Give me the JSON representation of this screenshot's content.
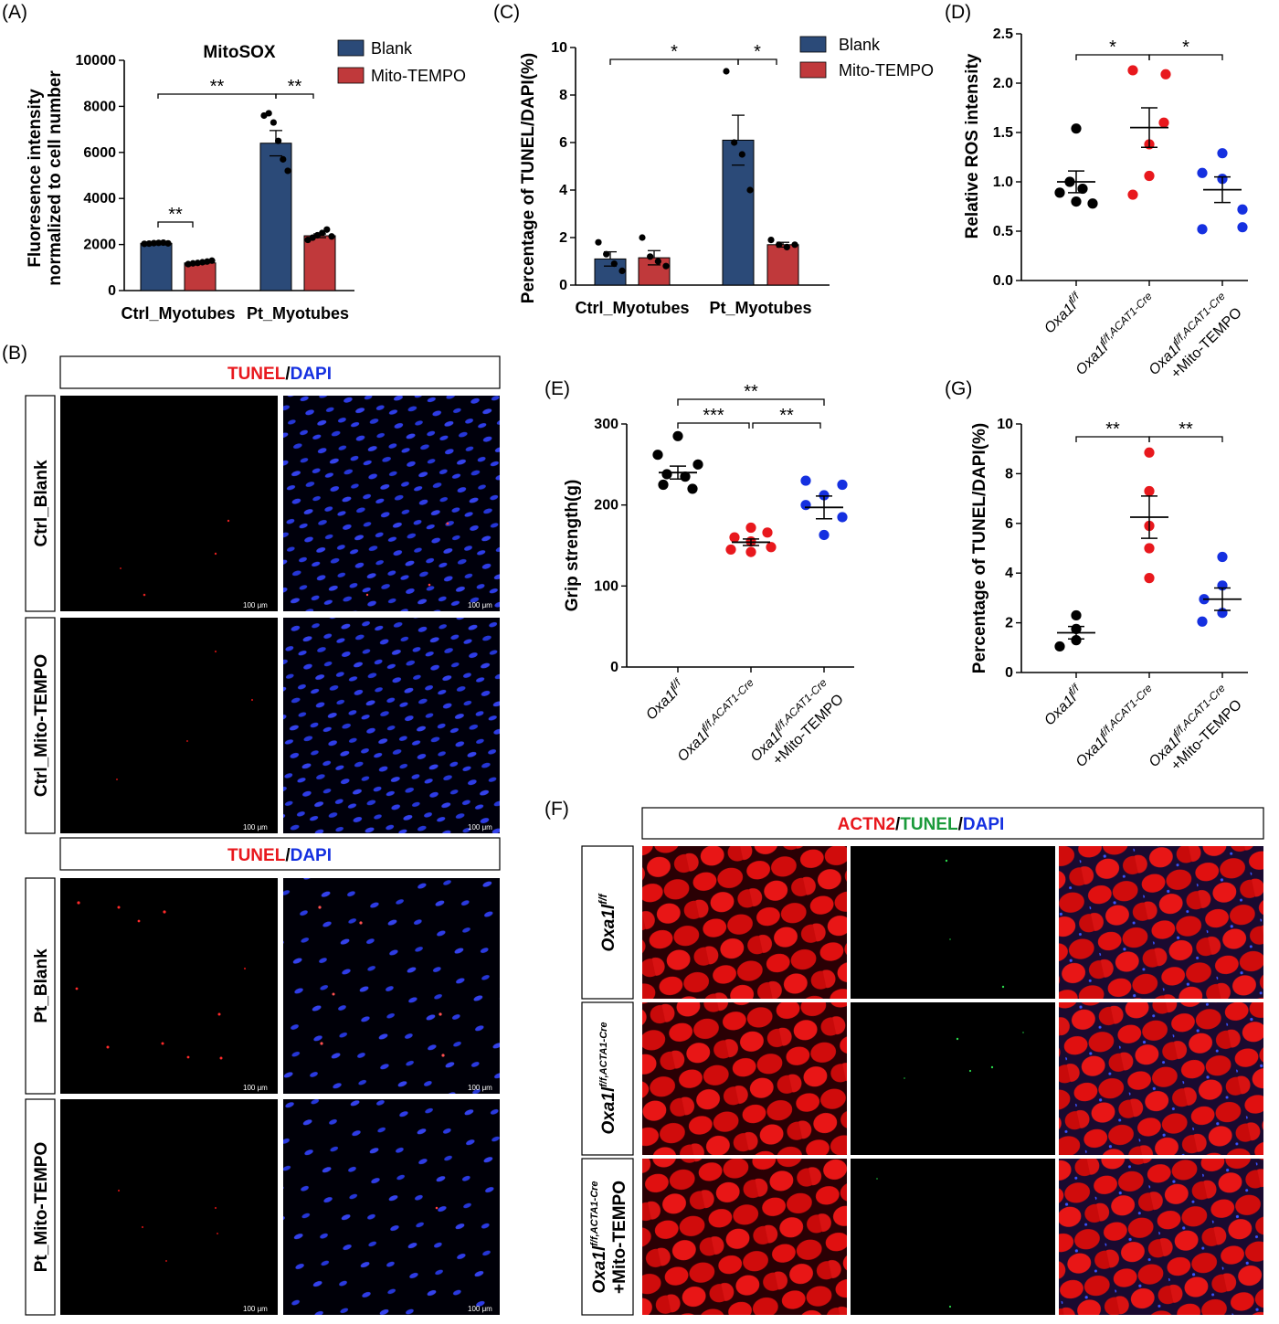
{
  "panels": {
    "A": {
      "letter": "(A)",
      "title": "MitoSOX",
      "ylabel_1": "Fluoresence intensity",
      "ylabel_2": "normalized to cell number"
    },
    "B": {
      "letter": "(B)",
      "header_red": "TUNEL",
      "header_sep": "/",
      "header_blue": "DAPI",
      "rows": [
        "Ctrl_Blank",
        "Ctrl_Mito-TEMPO",
        "Pt_Blank",
        "Pt_Mito-TEMPO"
      ],
      "scale_bar": "100 μm"
    },
    "C": {
      "letter": "(C)",
      "ylabel": "Percentage of TUNEL/DAPI(%)"
    },
    "D": {
      "letter": "(D)",
      "ylabel": "Relative ROS intensity"
    },
    "E": {
      "letter": "(E)",
      "ylabel": "Grip strength(g)"
    },
    "F": {
      "letter": "(F)",
      "header_red": "ACTN2",
      "header_sep1": "/",
      "header_green": "TUNEL",
      "header_sep2": "/",
      "header_blue": "DAPI",
      "row1_base": "Oxa1l",
      "row1_sup": "f/f",
      "row2_base": "Oxa1l",
      "row2_sup": "f/f,ACTA1-Cre",
      "row3_base": "Oxa1l",
      "row3_sup": "f/f,ACTA1-Cre",
      "row3_line2": "+Mito-TEMPO"
    },
    "G": {
      "letter": "(G)",
      "ylabel": "Percentage of TUNEL/DAPI(%)"
    }
  },
  "legend": {
    "blank": "Blank",
    "mito": "Mito-TEMPO"
  },
  "groups_bar": [
    "Ctrl_Myotubes",
    "Pt_Myotubes"
  ],
  "groups_mouse": {
    "g1": {
      "base": "Oxa1l",
      "sup": "f/f"
    },
    "g2": {
      "base": "Oxa1l",
      "sup": "f/f,ACAT1-Cre"
    },
    "g3": {
      "base": "Oxa1l",
      "sup": "f/f,ACAT1-Cre",
      "line2": "+Mito-TEMPO"
    }
  },
  "sig": {
    "one": "*",
    "two": "**",
    "three": "***"
  },
  "colors": {
    "blank": "#2b4a78",
    "mito": "#c0393b",
    "g1": "#000000",
    "g2": "#e8181d",
    "g3": "#1530e0",
    "tunel_red": "#e8181d",
    "dapi_blue": "#1530e0",
    "tunel_green": "#1a9a3a"
  },
  "chart_data": [
    {
      "id": "A",
      "type": "bar",
      "title": "MitoSOX",
      "ylabel": "Fluoresence intensity normalized to cell number",
      "categories": [
        "Ctrl_Myotubes",
        "Pt_Myotubes"
      ],
      "ylim": [
        0,
        10000
      ],
      "yticks": [
        0,
        2000,
        4000,
        6000,
        8000,
        10000
      ],
      "series": [
        {
          "name": "Blank",
          "values": [
            2050,
            6400
          ],
          "errors": [
            30,
            550
          ],
          "points": [
            [
              2030,
              2040,
              2060,
              2070,
              2080,
              2050
            ],
            [
              7600,
              7700,
              7300,
              6500,
              5700,
              5200
            ]
          ]
        },
        {
          "name": "Mito-TEMPO",
          "values": [
            1200,
            2380
          ],
          "errors": [
            40,
            80
          ],
          "points": [
            [
              1150,
              1180,
              1200,
              1230,
              1260,
              1300
            ],
            [
              2200,
              2300,
              2400,
              2500,
              2650,
              2350
            ]
          ]
        }
      ],
      "significance": [
        {
          "pair": "Ctrl Blank vs Ctrl Mito-TEMPO",
          "mark": "**"
        },
        {
          "pair": "Ctrl Blank vs Pt Blank",
          "mark": "**"
        },
        {
          "pair": "Pt Blank vs Pt Mito-TEMPO",
          "mark": "**"
        }
      ]
    },
    {
      "id": "C",
      "type": "bar",
      "ylabel": "Percentage of TUNEL/DAPI(%)",
      "categories": [
        "Ctrl_Myotubes",
        "Pt_Myotubes"
      ],
      "ylim": [
        0,
        10
      ],
      "yticks": [
        0,
        2,
        4,
        6,
        8,
        10
      ],
      "series": [
        {
          "name": "Blank",
          "values": [
            1.1,
            6.1
          ],
          "errors": [
            0.3,
            1.05
          ],
          "points": [
            [
              1.8,
              1.3,
              0.9,
              0.6
            ],
            [
              9.0,
              6.0,
              5.5,
              4.0
            ]
          ]
        },
        {
          "name": "Mito-TEMPO",
          "values": [
            1.15,
            1.7
          ],
          "errors": [
            0.3,
            0.1
          ],
          "points": [
            [
              2.0,
              1.2,
              1.0,
              0.8
            ],
            [
              1.9,
              1.7,
              1.6,
              1.7
            ]
          ]
        }
      ],
      "significance": [
        {
          "pair": "Ctrl Blank vs Pt Blank",
          "mark": "*"
        },
        {
          "pair": "Pt Blank vs Pt Mito-TEMPO",
          "mark": "*"
        }
      ]
    },
    {
      "id": "D",
      "type": "scatter",
      "ylabel": "Relative ROS intensity",
      "ylim": [
        0,
        2.5
      ],
      "yticks": [
        0.0,
        0.5,
        1.0,
        1.5,
        2.0,
        2.5
      ],
      "categories": [
        "Oxa1l f/f",
        "Oxa1l f/f,ACAT1-Cre",
        "Oxa1l f/f,ACAT1-Cre +Mito-TEMPO"
      ],
      "groups": [
        {
          "mean": 1.0,
          "sem": 0.11,
          "points": [
            1.54,
            1.0,
            0.93,
            0.89,
            0.8,
            0.78
          ]
        },
        {
          "mean": 1.55,
          "sem": 0.2,
          "points": [
            2.13,
            2.09,
            1.6,
            1.38,
            1.06,
            0.87
          ]
        },
        {
          "mean": 0.92,
          "sem": 0.13,
          "points": [
            1.29,
            1.09,
            1.03,
            0.72,
            0.54,
            0.52
          ]
        }
      ],
      "significance": [
        {
          "pair": "1 vs 2",
          "mark": "*"
        },
        {
          "pair": "2 vs 3",
          "mark": "*"
        }
      ]
    },
    {
      "id": "E",
      "type": "scatter",
      "ylabel": "Grip strength(g)",
      "ylim": [
        0,
        300
      ],
      "yticks": [
        0,
        100,
        200,
        300
      ],
      "categories": [
        "Oxa1l f/f",
        "Oxa1l f/f,ACAT1-Cre",
        "Oxa1l f/f,ACAT1-Cre +Mito-TEMPO"
      ],
      "groups": [
        {
          "mean": 240,
          "sem": 8,
          "points": [
            285,
            262,
            250,
            238,
            235,
            225,
            220
          ]
        },
        {
          "mean": 154,
          "sem": 4,
          "points": [
            172,
            166,
            160,
            155,
            148,
            145,
            142
          ]
        },
        {
          "mean": 197,
          "sem": 14,
          "points": [
            230,
            225,
            212,
            200,
            185,
            163
          ]
        }
      ],
      "significance": [
        {
          "pair": "1 vs 3",
          "mark": "**"
        },
        {
          "pair": "1 vs 2",
          "mark": "***"
        },
        {
          "pair": "2 vs 3",
          "mark": "**"
        }
      ]
    },
    {
      "id": "G",
      "type": "scatter",
      "ylabel": "Percentage of TUNEL/DAPI(%)",
      "ylim": [
        0,
        10
      ],
      "yticks": [
        0,
        2,
        4,
        6,
        8,
        10
      ],
      "categories": [
        "Oxa1l f/f",
        "Oxa1l f/f,ACAT1-Cre",
        "Oxa1l f/f,ACAT1-Cre +Mito-TEMPO"
      ],
      "groups": [
        {
          "mean": 1.6,
          "sem": 0.25,
          "points": [
            2.3,
            1.75,
            1.3,
            1.05
          ]
        },
        {
          "mean": 6.25,
          "sem": 0.85,
          "points": [
            8.85,
            7.3,
            5.9,
            5.0,
            3.8
          ]
        },
        {
          "mean": 2.95,
          "sem": 0.45,
          "points": [
            4.65,
            3.5,
            2.95,
            2.4,
            2.05
          ]
        }
      ],
      "significance": [
        {
          "pair": "1 vs 2",
          "mark": "**"
        },
        {
          "pair": "2 vs 3",
          "mark": "**"
        }
      ]
    }
  ]
}
